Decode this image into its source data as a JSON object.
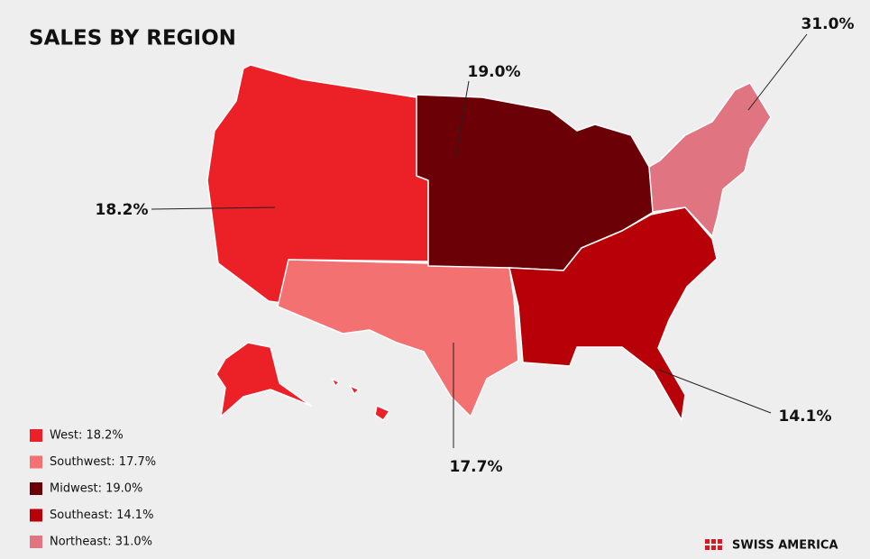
{
  "chart_data": {
    "type": "map",
    "title": "SALES BY REGION",
    "regions": [
      {
        "legend_label": "West: 18.2%",
        "value": 18.2,
        "value_label": "18.2%",
        "color": "#ec2027"
      },
      {
        "legend_label": "Southwest: 17.7%",
        "value": 17.7,
        "value_label": "17.7%",
        "color": "#f47171"
      },
      {
        "legend_label": "Midwest: 19.0%",
        "value": 19.0,
        "value_label": "19.0%",
        "color": "#6b0007"
      },
      {
        "legend_label": "Southeast: 14.1%",
        "value": 14.1,
        "value_label": "14.1%",
        "color": "#b80008"
      },
      {
        "legend_label": "Northeast: 31.0%",
        "value": 31.0,
        "value_label": "31.0%",
        "color": "#e07581"
      }
    ]
  },
  "brand": "SWISS AMERICA"
}
